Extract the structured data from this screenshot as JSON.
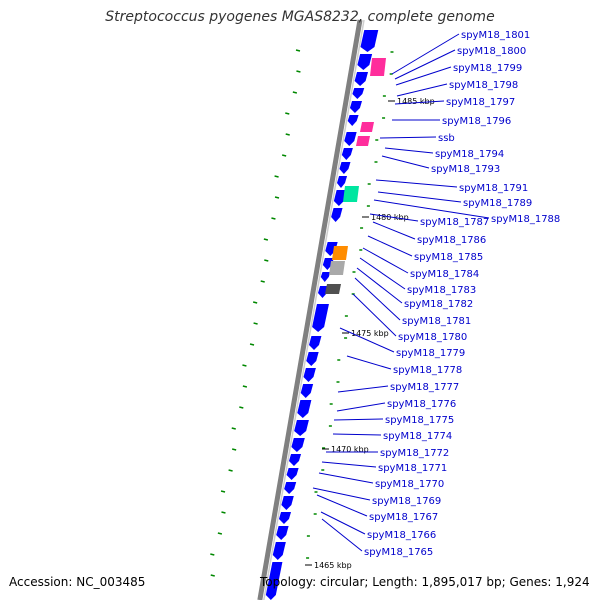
{
  "header": {
    "title": "Streptococcus pyogenes MGAS8232, complete genome"
  },
  "footer": {
    "accession": "Accession: NC_003485",
    "topology": "Topology: circular; Length: 1,895,017 bp; Genes: 1,924"
  },
  "colors": {
    "cds": "#0000ff",
    "rna_pink": "#ff2d9c",
    "mint": "#00e6a0",
    "orange": "#ff8c00",
    "gray": "#a9a9a9",
    "darkgray": "#505050",
    "gc_mark": "#008800",
    "label": "#0000cc",
    "backbone": "#808080"
  },
  "kbp_ticks": [
    "1485 kbp",
    "1480 kbp",
    "1475 kbp",
    "1470 kbp",
    "1465 kbp"
  ],
  "gene_labels": [
    "spyM18_1801",
    "spyM18_1800",
    "spyM18_1799",
    "spyM18_1798",
    "spyM18_1797",
    "spyM18_1796",
    "ssb",
    "spyM18_1794",
    "spyM18_1793",
    "spyM18_1791",
    "spyM18_1789",
    "spyM18_1788",
    "spyM18_1787",
    "spyM18_1786",
    "spyM18_1785",
    "spyM18_1784",
    "spyM18_1783",
    "spyM18_1782",
    "spyM18_1781",
    "spyM18_1780",
    "spyM18_1779",
    "spyM18_1778",
    "spyM18_1777",
    "spyM18_1776",
    "spyM18_1775",
    "spyM18_1774",
    "spyM18_1772",
    "spyM18_1771",
    "spyM18_1770",
    "spyM18_1769",
    "spyM18_1767",
    "spyM18_1766",
    "spyM18_1765"
  ]
}
